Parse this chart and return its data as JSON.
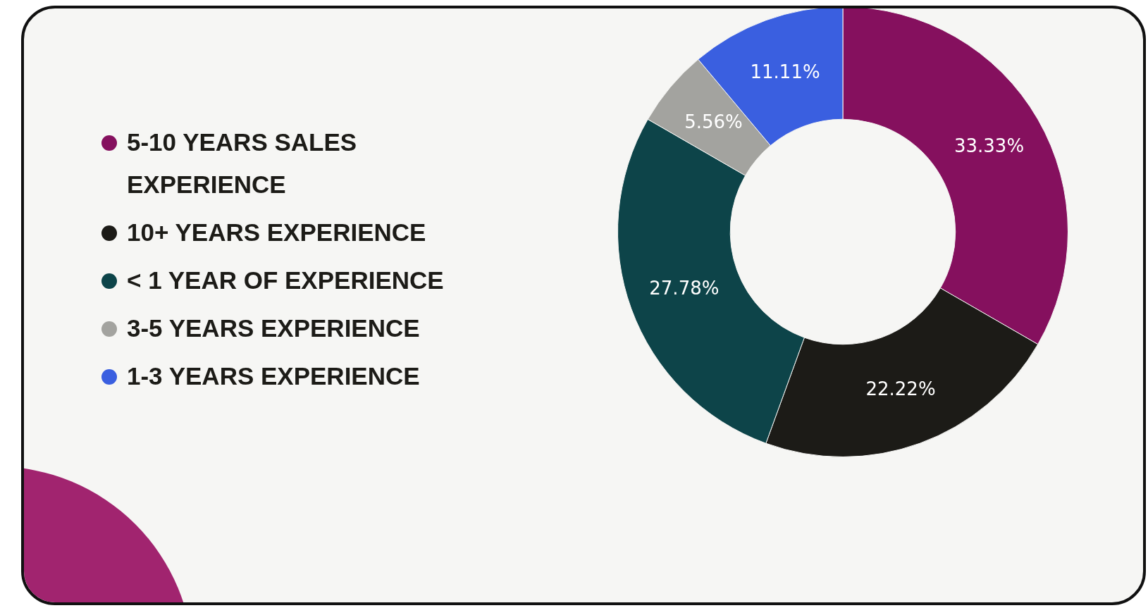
{
  "chart_data": {
    "type": "donut",
    "categories": [
      "5-10 YEARS SALES EXPERIENCE",
      "10+ YEARS EXPERIENCE",
      "< 1 YEAR OF EXPERIENCE",
      "3-5 YEARS EXPERIENCE",
      "1-3 YEARS EXPERIENCE"
    ],
    "values": [
      33.33,
      22.22,
      27.78,
      5.56,
      11.11
    ],
    "value_labels": [
      "33.33%",
      "22.22%",
      "27.78%",
      "5.56%",
      "11.11%"
    ],
    "colors": [
      "#85105e",
      "#1c1b17",
      "#0d4449",
      "#a3a39f",
      "#3a5fe0"
    ],
    "legend": "left"
  }
}
